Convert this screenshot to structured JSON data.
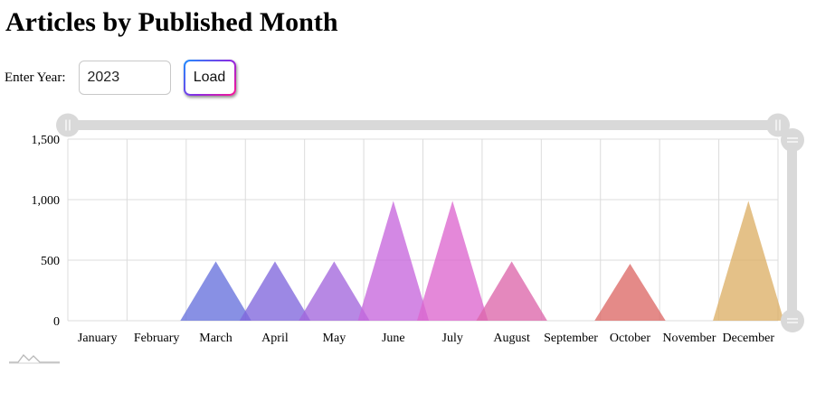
{
  "page": {
    "title": "Articles by Published Month",
    "year_label": "Enter Year:",
    "year_value": "2023",
    "load_label": "Load"
  },
  "chart_data": {
    "type": "bar",
    "title": "",
    "xlabel": "",
    "ylabel": "",
    "categories": [
      "January",
      "February",
      "March",
      "April",
      "May",
      "June",
      "July",
      "August",
      "September",
      "October",
      "November",
      "December"
    ],
    "values": [
      0,
      0,
      490,
      490,
      490,
      990,
      990,
      490,
      0,
      470,
      0,
      990
    ],
    "colors": [
      "#6794dc",
      "#6771dc",
      "#6771dc",
      "#8067dc",
      "#a367dc",
      "#c767dc",
      "#dc67ce",
      "#dc67ab",
      "#dc6788",
      "#dc6967",
      "#dc8c67",
      "#dcaf67"
    ],
    "ylim": [
      0,
      1500
    ],
    "yticks": [
      "0",
      "500",
      "1,000",
      "1,500"
    ],
    "ytick_values": [
      0,
      500,
      1000,
      1500
    ],
    "grid": true,
    "bar_shape": "triangle",
    "legend": "none"
  }
}
